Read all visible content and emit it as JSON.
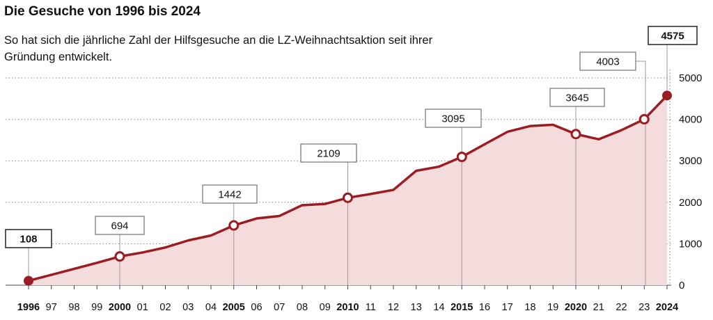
{
  "header": {
    "title": "Die Gesuche von 1996 bis 2024",
    "subtitle": "So hat sich die jährliche Zahl der Hilfsgesuche an die LZ-Weihnachtsaktion seit ihrer Gründung entwickelt."
  },
  "colors": {
    "line": "#9b1c22",
    "area": "#f4dcdc",
    "grid": "#888888"
  },
  "chart_data": {
    "type": "area",
    "title": "Die Gesuche von 1996 bis 2024",
    "xlabel": "",
    "ylabel": "",
    "ylim": [
      0,
      5000
    ],
    "yticks": [
      0,
      1000,
      2000,
      3000,
      4000,
      5000
    ],
    "grid": true,
    "x": [
      1996,
      1997,
      1998,
      1999,
      2000,
      2001,
      2002,
      2003,
      2004,
      2005,
      2006,
      2007,
      2008,
      2009,
      2010,
      2011,
      2012,
      2013,
      2014,
      2015,
      2016,
      2017,
      2018,
      2019,
      2020,
      2021,
      2022,
      2023,
      2024
    ],
    "x_tick_labels": [
      "1996",
      "97",
      "98",
      "99",
      "2000",
      "01",
      "02",
      "03",
      "04",
      "2005",
      "06",
      "07",
      "08",
      "09",
      "2010",
      "11",
      "12",
      "13",
      "14",
      "2015",
      "16",
      "17",
      "18",
      "19",
      "2020",
      "21",
      "22",
      "23",
      "2024"
    ],
    "bold_ticks": [
      "1996",
      "2000",
      "2005",
      "2010",
      "2015",
      "2020",
      "2024"
    ],
    "series": [
      {
        "name": "Hilfsgesuche",
        "values": [
          108,
          250,
          395,
          540,
          694,
          790,
          910,
          1080,
          1200,
          1442,
          1610,
          1670,
          1930,
          1960,
          2109,
          2200,
          2300,
          2760,
          2860,
          3095,
          3400,
          3700,
          3840,
          3870,
          3645,
          3520,
          3740,
          4003,
          4575
        ]
      }
    ],
    "annotations": [
      {
        "x": 1996,
        "label": "108",
        "bold": true,
        "marker": "filled"
      },
      {
        "x": 2000,
        "label": "694",
        "bold": false,
        "marker": "open"
      },
      {
        "x": 2005,
        "label": "1442",
        "bold": false,
        "marker": "open"
      },
      {
        "x": 2010,
        "label": "2109",
        "bold": false,
        "marker": "open"
      },
      {
        "x": 2015,
        "label": "3095",
        "bold": false,
        "marker": "open"
      },
      {
        "x": 2020,
        "label": "3645",
        "bold": false,
        "marker": "open"
      },
      {
        "x": 2023,
        "label": "4003",
        "bold": false,
        "marker": "open"
      },
      {
        "x": 2024,
        "label": "4575",
        "bold": true,
        "marker": "filled"
      }
    ]
  }
}
